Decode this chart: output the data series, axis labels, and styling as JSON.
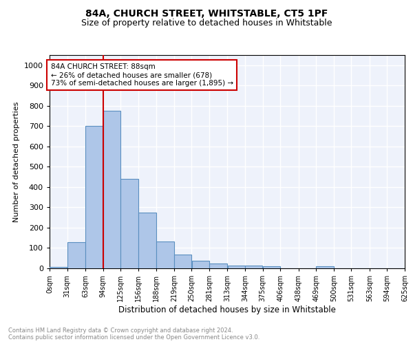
{
  "title1": "84A, CHURCH STREET, WHITSTABLE, CT5 1PF",
  "title2": "Size of property relative to detached houses in Whitstable",
  "xlabel": "Distribution of detached houses by size in Whitstable",
  "ylabel": "Number of detached properties",
  "footnote": "Contains HM Land Registry data © Crown copyright and database right 2024.\nContains public sector information licensed under the Open Government Licence v3.0.",
  "bin_labels": [
    "0sqm",
    "31sqm",
    "63sqm",
    "94sqm",
    "125sqm",
    "156sqm",
    "188sqm",
    "219sqm",
    "250sqm",
    "281sqm",
    "313sqm",
    "344sqm",
    "375sqm",
    "406sqm",
    "438sqm",
    "469sqm",
    "500sqm",
    "531sqm",
    "563sqm",
    "594sqm",
    "625sqm"
  ],
  "bin_edges": [
    0,
    31,
    63,
    94,
    125,
    156,
    188,
    219,
    250,
    281,
    313,
    344,
    375,
    406,
    438,
    469,
    500,
    531,
    563,
    594,
    625
  ],
  "bar_heights": [
    8,
    128,
    700,
    775,
    440,
    275,
    133,
    68,
    38,
    25,
    13,
    13,
    10,
    0,
    0,
    10,
    0,
    0,
    0,
    0
  ],
  "bar_color": "#aec6e8",
  "bar_edge_color": "#5a8fc0",
  "property_line_x": 94,
  "annotation_text": "84A CHURCH STREET: 88sqm\n← 26% of detached houses are smaller (678)\n73% of semi-detached houses are larger (1,895) →",
  "annotation_box_color": "#ffffff",
  "annotation_border_color": "#cc0000",
  "ylim": [
    0,
    1050
  ],
  "background_color": "#eef2fb",
  "grid_color": "#ffffff",
  "vline_color": "#cc0000"
}
